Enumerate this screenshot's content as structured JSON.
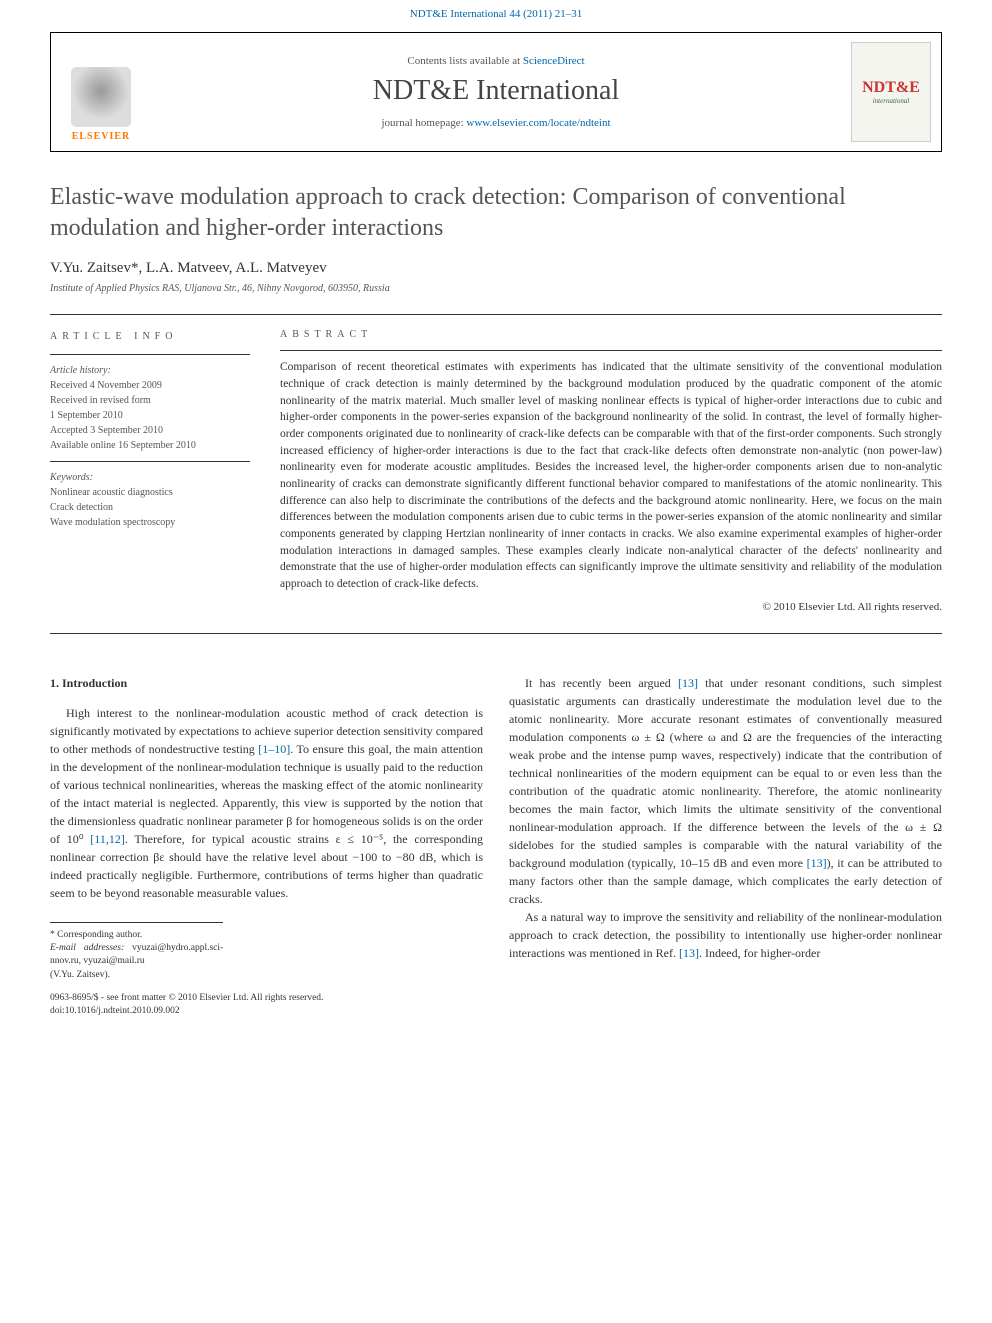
{
  "header": {
    "citation_link": "NDT&E International 44 (2011) 21–31",
    "contents_prefix": "Contents lists available at ",
    "contents_link": "ScienceDirect",
    "journal_name": "NDT&E International",
    "homepage_prefix": "journal homepage: ",
    "homepage_link": "www.elsevier.com/locate/ndteint",
    "elsevier_label": "ELSEVIER",
    "right_logo_main": "NDT&E",
    "right_logo_sub": "international"
  },
  "article": {
    "title": "Elastic-wave modulation approach to crack detection: Comparison of conventional modulation and higher-order interactions",
    "authors": "V.Yu. Zaitsev*, L.A. Matveev, A.L. Matveyev",
    "affiliation": "Institute of Applied Physics RAS, Uljanova Str., 46, Nihny Novgorod, 603950, Russia"
  },
  "info": {
    "heading": "ARTICLE INFO",
    "history_label": "Article history:",
    "received": "Received 4 November 2009",
    "revised1": "Received in revised form",
    "revised2": "1 September 2010",
    "accepted": "Accepted 3 September 2010",
    "online": "Available online 16 September 2010",
    "keywords_label": "Keywords:",
    "kw1": "Nonlinear acoustic diagnostics",
    "kw2": "Crack detection",
    "kw3": "Wave modulation spectroscopy"
  },
  "abstract": {
    "heading": "ABSTRACT",
    "text": "Comparison of recent theoretical estimates with experiments has indicated that the ultimate sensitivity of the conventional modulation technique of crack detection is mainly determined by the background modulation produced by the quadratic component of the atomic nonlinearity of the matrix material. Much smaller level of masking nonlinear effects is typical of higher-order interactions due to cubic and higher-order components in the power-series expansion of the background nonlinearity of the solid. In contrast, the level of formally higher-order components originated due to nonlinearity of crack-like defects can be comparable with that of the first-order components. Such strongly increased efficiency of higher-order interactions is due to the fact that crack-like defects often demonstrate non-analytic (non power-law) nonlinearity even for moderate acoustic amplitudes. Besides the increased level, the higher-order components arisen due to non-analytic nonlinearity of cracks can demonstrate significantly different functional behavior compared to manifestations of the atomic nonlinearity. This difference can also help to discriminate the contributions of the defects and the background atomic nonlinearity. Here, we focus on the main differences between the modulation components arisen due to cubic terms in the power-series expansion of the atomic nonlinearity and similar components generated by clapping Hertzian nonlinearity of inner contacts in cracks. We also examine experimental examples of higher-order modulation interactions in damaged samples. These examples clearly indicate non-analytical character of the defects' nonlinearity and demonstrate that the use of higher-order modulation effects can significantly improve the ultimate sensitivity and reliability of the modulation approach to detection of crack-like defects.",
    "copyright": "© 2010 Elsevier Ltd. All rights reserved."
  },
  "body": {
    "section_heading": "1.  Introduction",
    "col1_p1_a": "High interest to the nonlinear-modulation acoustic method of crack detection is significantly motivated by expectations to achieve superior detection sensitivity compared to other methods of nondestructive testing ",
    "col1_ref1": "[1–10]",
    "col1_p1_b": ". To ensure this goal, the main attention in the development of the nonlinear-modulation technique is usually paid to the reduction of various technical nonlinearities, whereas the masking effect of the atomic nonlinearity of the intact material is neglected. Apparently, this view is supported by the notion that the dimensionless quadratic nonlinear parameter β for homogeneous solids is on the order of 10⁰ ",
    "col1_ref2": "[11,12]",
    "col1_p1_c": ". Therefore, for typical acoustic strains ε ≤ 10⁻⁵, the corresponding nonlinear correction βε should have the relative level about −100 to −80 dB, which is indeed practically negligible. Furthermore, contributions of terms higher than quadratic seem to be beyond reasonable measurable values.",
    "col2_p1_a": "It has recently been argued ",
    "col2_ref1": "[13]",
    "col2_p1_b": " that under resonant conditions, such simplest quasistatic arguments can drastically underestimate the modulation level due to the atomic nonlinearity. More accurate resonant estimates of conventionally measured modulation components ω ± Ω (where ω and Ω are the frequencies of the interacting weak probe and the intense pump waves, respectively) indicate that the contribution of technical nonlinearities of the modern equipment can be equal to or even less than the contribution of the quadratic atomic nonlinearity. Therefore, the atomic nonlinearity becomes the main factor, which limits the ultimate sensitivity of the conventional nonlinear-modulation approach. If the difference between the levels of the ω ± Ω sidelobes for the studied samples is comparable with the natural variability of the background modulation (typically, 10–15 dB and even more ",
    "col2_ref2": "[13]",
    "col2_p1_c": "), it can be attributed to many factors other than the sample damage, which complicates the early detection of cracks.",
    "col2_p2_a": "As a natural way to improve the sensitivity and reliability of the nonlinear-modulation approach to crack detection, the possibility to intentionally use higher-order nonlinear interactions was mentioned in Ref. ",
    "col2_ref3": "[13]",
    "col2_p2_b": ". Indeed, for higher-order"
  },
  "footer": {
    "corresp": "* Corresponding author.",
    "email_label": "E-mail addresses: ",
    "email1": "vyuzai@hydro.appl.sci-nnov.ru",
    "email_sep": ", ",
    "email2": "vyuzai@mail.ru",
    "email_name": "(V.Yu. Zaitsev).",
    "issn": "0963-8695/$ - see front matter © 2010 Elsevier Ltd. All rights reserved.",
    "doi": "doi:10.1016/j.ndteint.2010.09.002"
  },
  "colors": {
    "link": "#0066aa",
    "text": "#333333",
    "heading_gray": "#555555",
    "elsevier_orange": "#ff7700",
    "ndt_red": "#cc3333"
  }
}
